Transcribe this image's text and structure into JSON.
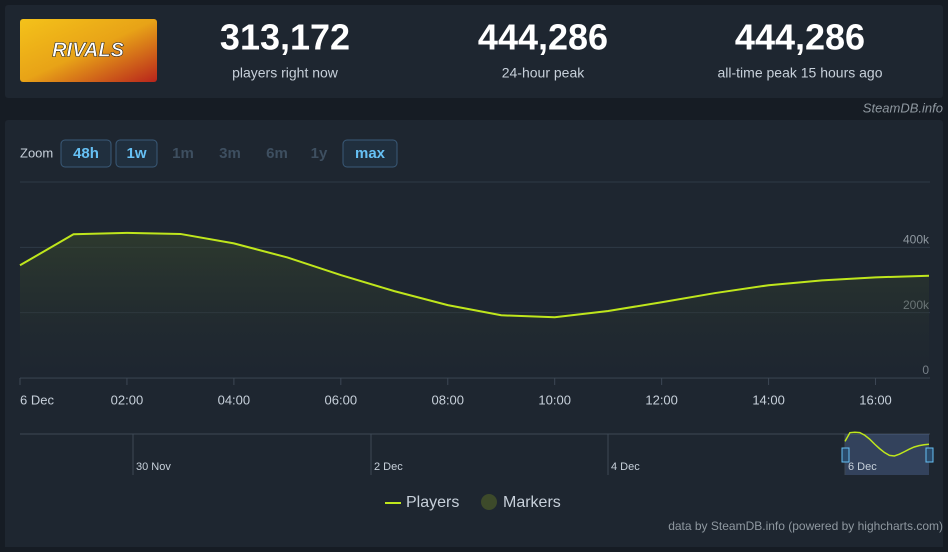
{
  "header": {
    "image_text": "RIVALS",
    "source": "SteamDB.info",
    "stats": [
      {
        "value": "313,172",
        "label": "players right now"
      },
      {
        "value": "444,286",
        "label": "24-hour peak"
      },
      {
        "value": "444,286",
        "label": "all-time peak 15 hours ago"
      }
    ]
  },
  "zoom": {
    "label": "Zoom",
    "buttons": [
      {
        "label": "48h",
        "enabled": true
      },
      {
        "label": "1w",
        "enabled": true
      },
      {
        "label": "1m",
        "enabled": false
      },
      {
        "label": "3m",
        "enabled": false
      },
      {
        "label": "6m",
        "enabled": false
      },
      {
        "label": "1y",
        "enabled": false
      },
      {
        "label": "max",
        "enabled": true
      }
    ]
  },
  "chart_data": {
    "type": "line",
    "x": [
      0,
      1,
      2,
      3,
      4,
      5,
      6,
      7,
      8,
      9,
      10,
      11,
      12,
      13,
      14,
      15,
      16,
      17
    ],
    "series": [
      {
        "name": "Players",
        "color": "#bfe61c",
        "values": [
          345000,
          440000,
          444286,
          441000,
          412000,
          369000,
          315000,
          266000,
          223000,
          192000,
          186000,
          205000,
          232000,
          260000,
          284000,
          299000,
          308000,
          313172
        ]
      }
    ],
    "markers": {
      "name": "Markers",
      "color": "#3d4a2a"
    },
    "xlim": [
      0,
      17
    ],
    "xticks": [
      {
        "value": 0,
        "label": "6 Dec"
      },
      {
        "value": 2,
        "label": "02:00"
      },
      {
        "value": 4,
        "label": "04:00"
      },
      {
        "value": 6,
        "label": "06:00"
      },
      {
        "value": 8,
        "label": "08:00"
      },
      {
        "value": 10,
        "label": "10:00"
      },
      {
        "value": 12,
        "label": "12:00"
      },
      {
        "value": 14,
        "label": "14:00"
      },
      {
        "value": 16,
        "label": "16:00"
      }
    ],
    "ylim": [
      0,
      600000
    ],
    "yticks": [
      0,
      {
        "value": 200000,
        "label": "200k"
      },
      {
        "value": 400000,
        "label": "400k"
      }
    ],
    "grid": true,
    "navigator_labels": [
      "30 Nov",
      "2 Dec",
      "4 Dec",
      "6 Dec"
    ],
    "credits": "data by SteamDB.info (powered by highcharts.com)"
  }
}
